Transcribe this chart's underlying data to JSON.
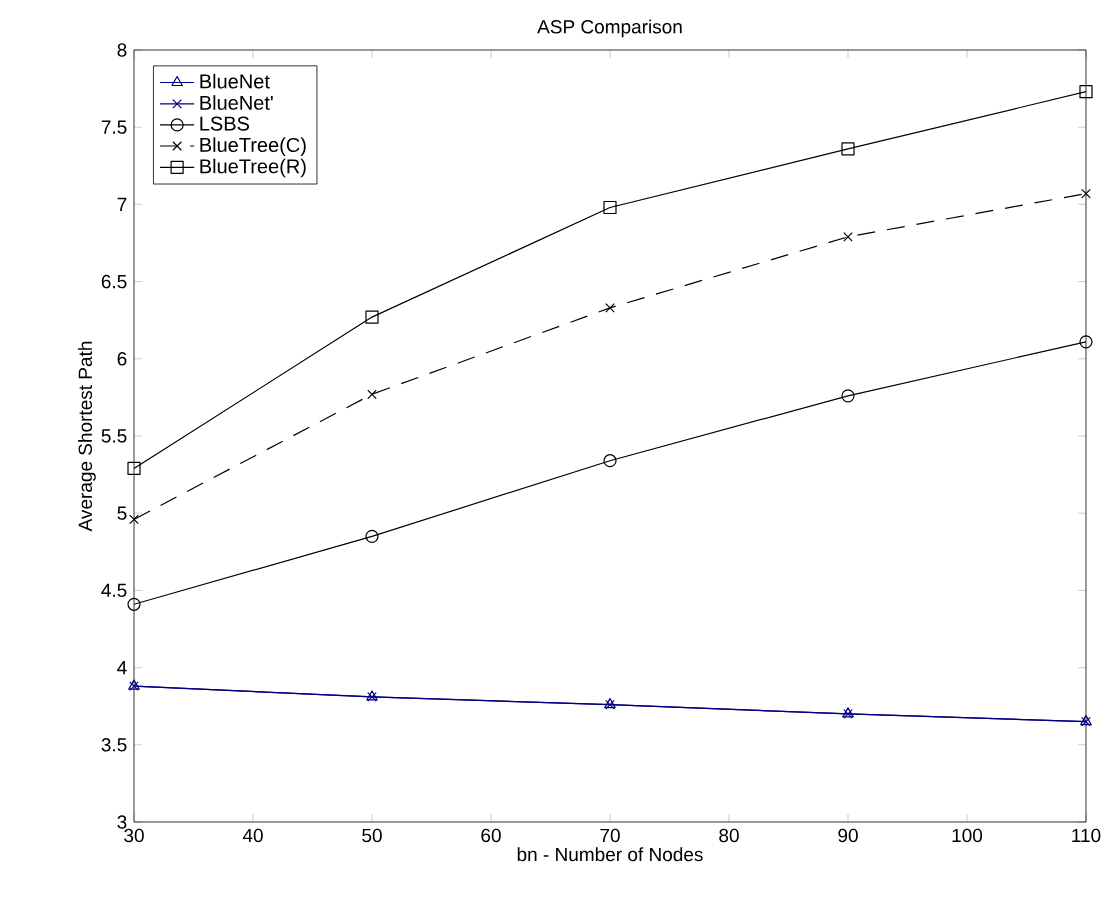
{
  "chart_data": {
    "type": "line",
    "title": "ASP Comparison",
    "xlabel": "bn - Number of Nodes",
    "ylabel": "Average Shortest Path",
    "x": [
      30,
      50,
      70,
      90,
      110
    ],
    "series": [
      {
        "name": "BlueNet",
        "color": "#000080",
        "marker": "triangle",
        "line_style": "solid",
        "values": [
          3.88,
          3.81,
          3.76,
          3.7,
          3.65
        ]
      },
      {
        "name": "BlueNet'",
        "color": "#000080",
        "marker": "cross",
        "line_style": "solid",
        "values": [
          3.88,
          3.81,
          3.76,
          3.7,
          3.65
        ]
      },
      {
        "name": "LSBS",
        "color": "#000000",
        "marker": "circle",
        "line_style": "solid",
        "values": [
          4.41,
          4.85,
          5.34,
          5.76,
          6.11
        ]
      },
      {
        "name": "BlueTree(C)",
        "color": "#000000",
        "marker": "cross",
        "line_style": "dashed",
        "values": [
          4.96,
          5.77,
          6.33,
          6.79,
          7.07
        ]
      },
      {
        "name": "BlueTree(R)",
        "color": "#000000",
        "marker": "square",
        "line_style": "solid",
        "values": [
          5.29,
          6.27,
          6.98,
          7.36,
          7.73
        ]
      }
    ],
    "xlim": [
      30,
      110
    ],
    "ylim": [
      3,
      8
    ],
    "xticks": [
      30,
      40,
      50,
      60,
      70,
      80,
      90,
      100,
      110
    ],
    "yticks": [
      3,
      3.5,
      4,
      4.5,
      5,
      5.5,
      6,
      6.5,
      7,
      7.5,
      8
    ],
    "grid": false,
    "legend": "top left"
  }
}
